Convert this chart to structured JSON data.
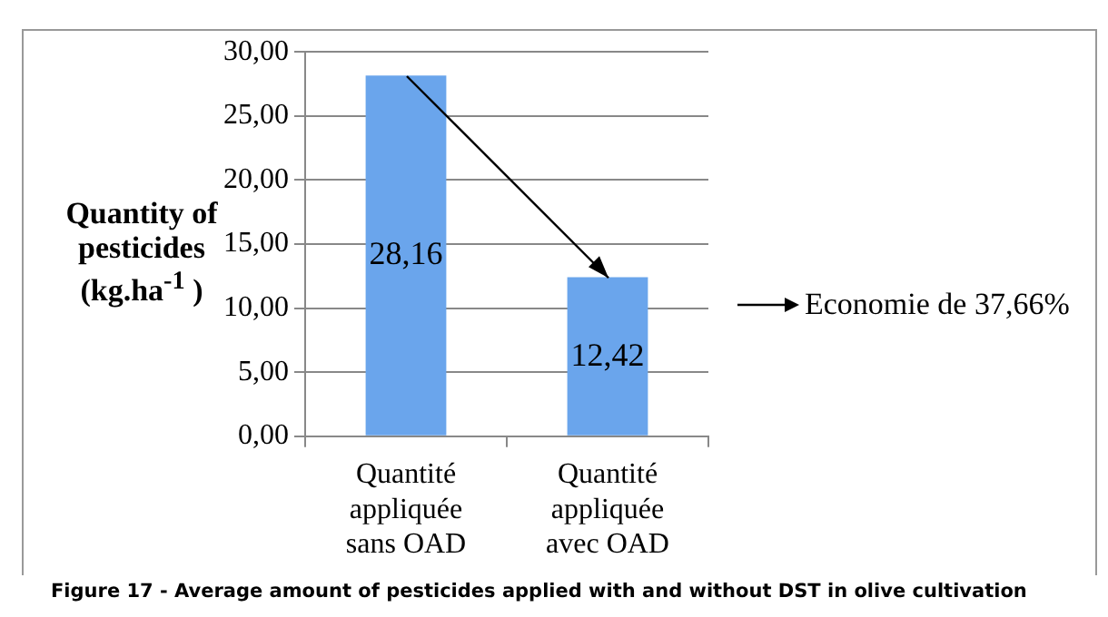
{
  "chart_data": {
    "type": "bar",
    "ylabel": "Quantity of pesticides (kg.ha$^{-1}$ )",
    "categories": [
      "Quantité appliquée sans OAD",
      "Quantité appliquée avec OAD"
    ],
    "values": [
      28.16,
      12.42
    ],
    "color": "#6aa5ec",
    "value_labels": [
      "28,16",
      "12,42"
    ],
    "ylim": [
      0,
      30
    ],
    "yticks": [
      {
        "value": 0,
        "label": "0,00"
      },
      {
        "value": 5,
        "label": "5,00"
      },
      {
        "value": 10,
        "label": "10,00"
      },
      {
        "value": 15,
        "label": "15,00"
      },
      {
        "value": 20,
        "label": "20,00"
      },
      {
        "value": 25,
        "label": "25,00"
      },
      {
        "value": 30,
        "label": "30,00"
      }
    ],
    "grid": "y",
    "annotations": [
      "Economie de 37,66%",
      "Figure 17 - Average amount of pesticides applied with and without DST in olive cultivation"
    ]
  }
}
